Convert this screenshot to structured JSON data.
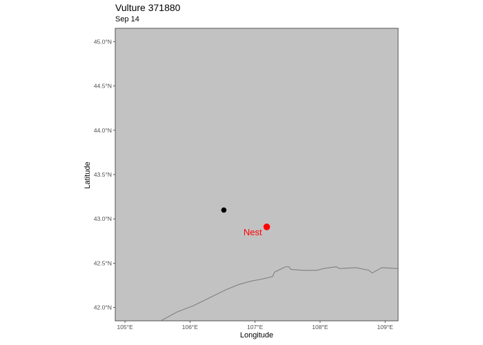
{
  "chart": {
    "title": "Vulture 371880",
    "subtitle": "Sep 14",
    "xlabel": "Longitude",
    "ylabel": "Latitude"
  },
  "chart_data": {
    "type": "map",
    "title": "Vulture 371880",
    "subtitle": "Sep 14",
    "xlabel": "Longitude",
    "ylabel": "Latitude",
    "xlim": [
      104.85,
      109.2
    ],
    "ylim": [
      41.85,
      45.15
    ],
    "x_ticks": [
      105,
      106,
      107,
      108,
      109
    ],
    "x_tick_labels": [
      "105°E",
      "106°E",
      "107°E",
      "108°E",
      "109°E"
    ],
    "y_ticks": [
      42.0,
      42.5,
      43.0,
      43.5,
      44.0,
      44.5,
      45.0
    ],
    "y_tick_labels": [
      "42.0°N",
      "42.5°N",
      "43.0°N",
      "43.5°N",
      "44.0°N",
      "44.5°N",
      "45.0°N"
    ],
    "grid": false,
    "colors": {
      "panel": "#c2c2c2",
      "border_line": "#808080",
      "vulture_point": "#000000",
      "nest_point": "#ff0000"
    },
    "points": [
      {
        "name": "vulture-location",
        "lon": 106.52,
        "lat": 43.1,
        "color": "#000000"
      },
      {
        "name": "nest",
        "label": "Nest",
        "lon": 107.18,
        "lat": 42.91,
        "color": "#ff0000"
      }
    ],
    "border": [
      [
        105.55,
        41.85
      ],
      [
        105.8,
        41.95
      ],
      [
        106.05,
        42.02
      ],
      [
        106.3,
        42.11
      ],
      [
        106.55,
        42.2
      ],
      [
        106.75,
        42.26
      ],
      [
        106.95,
        42.3
      ],
      [
        107.1,
        42.32
      ],
      [
        107.27,
        42.35
      ],
      [
        107.3,
        42.4
      ],
      [
        107.47,
        42.46
      ],
      [
        107.52,
        42.46
      ],
      [
        107.55,
        42.43
      ],
      [
        107.75,
        42.42
      ],
      [
        107.95,
        42.42
      ],
      [
        108.05,
        42.44
      ],
      [
        108.25,
        42.46
      ],
      [
        108.3,
        42.44
      ],
      [
        108.55,
        42.45
      ],
      [
        108.75,
        42.42
      ],
      [
        108.8,
        42.39
      ],
      [
        108.95,
        42.45
      ],
      [
        109.2,
        42.44
      ]
    ]
  }
}
